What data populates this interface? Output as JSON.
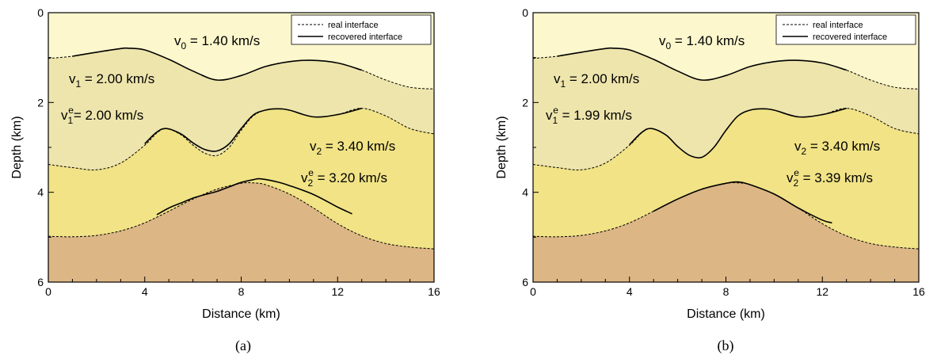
{
  "chart_data": [
    {
      "type": "line",
      "caption": "(a)",
      "xlabel": "Distance (km)",
      "ylabel": "Depth (km)",
      "xlim": [
        0,
        16
      ],
      "ylim": [
        6,
        0
      ],
      "x_ticks": [
        "0",
        "4",
        "8",
        "12",
        "16"
      ],
      "y_ticks": [
        "0",
        "2",
        "4",
        "6"
      ],
      "legend": {
        "placement": "top-right",
        "entries": [
          "real interface",
          "recovered interface"
        ]
      },
      "layer_colors": [
        "#fcf7cc",
        "#eee5ad",
        "#f1e386",
        "#ddb685"
      ],
      "layer_labels": [
        {
          "v": "v",
          "sub": "0",
          "sup": "",
          "text": " = 1.40 km/s"
        },
        {
          "v": "v",
          "sub": "1",
          "sup": "",
          "text": " = 2.00 km/s"
        },
        {
          "v": "v",
          "sub": "1",
          "sup": "e",
          "text": "= 2.00 km/s"
        },
        {
          "v": "v",
          "sub": "2",
          "sup": "",
          "text": " = 3.40 km/s"
        },
        {
          "v": "v",
          "sub": "2",
          "sup": "e",
          "text": " = 3.20 km/s"
        }
      ],
      "series": [
        {
          "name": "real interface",
          "role": "interface-1",
          "x": [
            0,
            1,
            2,
            3,
            3.3,
            4,
            5,
            6,
            7,
            8,
            9,
            10,
            10.9,
            12,
            13,
            14,
            15,
            16
          ],
          "y": [
            1.02,
            0.97,
            0.88,
            0.8,
            0.79,
            0.83,
            1.04,
            1.3,
            1.5,
            1.4,
            1.2,
            1.09,
            1.06,
            1.12,
            1.28,
            1.5,
            1.66,
            1.7
          ]
        },
        {
          "name": "recovered interface",
          "role": "interface-1",
          "x": [
            1,
            2,
            3,
            3.3,
            4,
            5,
            6,
            7,
            8,
            9,
            10,
            10.9,
            12,
            13
          ],
          "y": [
            0.97,
            0.88,
            0.8,
            0.79,
            0.83,
            1.04,
            1.3,
            1.5,
            1.4,
            1.2,
            1.09,
            1.06,
            1.12,
            1.28
          ]
        },
        {
          "name": "real interface",
          "role": "interface-2",
          "x": [
            0,
            1,
            2,
            3,
            4,
            4.5,
            4.9,
            5.5,
            6,
            6.5,
            7,
            7.5,
            8,
            8.5,
            9,
            9.5,
            10,
            11,
            12,
            13,
            14,
            15,
            16
          ],
          "y": [
            3.38,
            3.45,
            3.5,
            3.35,
            2.95,
            2.68,
            2.58,
            2.72,
            2.95,
            3.13,
            3.18,
            3.0,
            2.62,
            2.3,
            2.17,
            2.14,
            2.17,
            2.32,
            2.27,
            2.13,
            2.3,
            2.58,
            2.7
          ]
        },
        {
          "name": "recovered interface",
          "role": "interface-2",
          "x": [
            4,
            4.5,
            4.9,
            5.5,
            6,
            6.5,
            7,
            7.5,
            8,
            8.5,
            9,
            9.5,
            10,
            11,
            12,
            13
          ],
          "y": [
            2.92,
            2.66,
            2.58,
            2.7,
            2.9,
            3.05,
            3.08,
            2.92,
            2.58,
            2.28,
            2.17,
            2.14,
            2.17,
            2.32,
            2.27,
            2.13
          ]
        },
        {
          "name": "real interface",
          "role": "interface-3",
          "x": [
            0,
            1,
            2,
            3,
            4,
            5,
            6,
            7,
            8,
            8.5,
            9,
            10,
            11,
            12,
            13,
            14,
            15,
            16
          ],
          "y": [
            4.98,
            4.99,
            4.96,
            4.86,
            4.68,
            4.42,
            4.15,
            3.93,
            3.8,
            3.79,
            3.83,
            4.04,
            4.35,
            4.7,
            4.97,
            5.14,
            5.22,
            5.26
          ]
        },
        {
          "name": "recovered interface",
          "role": "interface-3",
          "x": [
            4.5,
            5,
            5.5,
            6,
            6.5,
            7,
            7.5,
            8,
            8.5,
            8.8,
            9.5,
            10,
            11,
            12,
            12.6
          ],
          "y": [
            4.5,
            4.35,
            4.24,
            4.13,
            4.05,
            3.98,
            3.88,
            3.78,
            3.72,
            3.7,
            3.77,
            3.85,
            4.05,
            4.33,
            4.48
          ]
        }
      ]
    },
    {
      "type": "line",
      "caption": "(b)",
      "xlabel": "Distance (km)",
      "ylabel": "Depth (km)",
      "xlim": [
        0,
        16
      ],
      "ylim": [
        6,
        0
      ],
      "x_ticks": [
        "0",
        "4",
        "8",
        "12",
        "16"
      ],
      "y_ticks": [
        "0",
        "2",
        "4",
        "6"
      ],
      "legend": {
        "placement": "top-right",
        "entries": [
          "real interface",
          "recovered interface"
        ]
      },
      "layer_colors": [
        "#fcf7cc",
        "#eee5ad",
        "#f1e386",
        "#ddb685"
      ],
      "layer_labels": [
        {
          "v": "v",
          "sub": "0",
          "sup": "",
          "text": " = 1.40 km/s"
        },
        {
          "v": "v",
          "sub": "1",
          "sup": "",
          "text": " = 2.00 km/s"
        },
        {
          "v": "v",
          "sub": "1",
          "sup": "e",
          "text": " = 1.99 km/s"
        },
        {
          "v": "v",
          "sub": "2",
          "sup": "",
          "text": " = 3.40 km/s"
        },
        {
          "v": "v",
          "sub": "2",
          "sup": "e",
          "text": " = 3.39 km/s"
        }
      ],
      "series": [
        {
          "name": "real interface",
          "role": "interface-1",
          "x": [
            0,
            1,
            2,
            3,
            3.3,
            4,
            5,
            6,
            7,
            8,
            9,
            10,
            10.9,
            12,
            13,
            14,
            15,
            16
          ],
          "y": [
            1.02,
            0.97,
            0.88,
            0.8,
            0.79,
            0.83,
            1.04,
            1.3,
            1.5,
            1.4,
            1.2,
            1.09,
            1.06,
            1.12,
            1.28,
            1.5,
            1.66,
            1.7
          ]
        },
        {
          "name": "recovered interface",
          "role": "interface-1",
          "x": [
            1,
            2,
            3,
            3.3,
            4,
            5,
            6,
            7,
            8,
            9,
            10,
            10.9,
            12,
            13
          ],
          "y": [
            0.97,
            0.88,
            0.8,
            0.79,
            0.83,
            1.04,
            1.3,
            1.5,
            1.4,
            1.2,
            1.09,
            1.06,
            1.12,
            1.28
          ]
        },
        {
          "name": "real interface",
          "role": "interface-2",
          "x": [
            0,
            1,
            2,
            3,
            4,
            4.5,
            4.9,
            5.5,
            6,
            6.5,
            7,
            7.5,
            8,
            8.5,
            9,
            9.5,
            10,
            11,
            12,
            13,
            14,
            15,
            16
          ],
          "y": [
            3.38,
            3.45,
            3.5,
            3.35,
            2.95,
            2.68,
            2.58,
            2.72,
            2.98,
            3.18,
            3.22,
            3.0,
            2.62,
            2.3,
            2.17,
            2.14,
            2.17,
            2.32,
            2.27,
            2.13,
            2.3,
            2.58,
            2.7
          ]
        },
        {
          "name": "recovered interface",
          "role": "interface-2",
          "x": [
            4,
            4.5,
            4.9,
            5.5,
            6,
            6.5,
            7,
            7.5,
            8,
            8.5,
            9,
            9.5,
            10,
            11,
            12,
            13
          ],
          "y": [
            2.94,
            2.67,
            2.58,
            2.72,
            2.98,
            3.18,
            3.22,
            3.0,
            2.62,
            2.3,
            2.17,
            2.14,
            2.17,
            2.32,
            2.27,
            2.13
          ]
        },
        {
          "name": "real interface",
          "role": "interface-3",
          "x": [
            0,
            1,
            2,
            3,
            4,
            5,
            6,
            7,
            8,
            8.5,
            9,
            10,
            11,
            12,
            13,
            14,
            15,
            16
          ],
          "y": [
            4.98,
            4.99,
            4.96,
            4.86,
            4.68,
            4.42,
            4.15,
            3.93,
            3.8,
            3.79,
            3.83,
            4.04,
            4.35,
            4.7,
            4.97,
            5.14,
            5.22,
            5.26
          ]
        },
        {
          "name": "recovered interface",
          "role": "interface-3",
          "x": [
            5,
            6,
            7,
            8,
            8.5,
            9,
            10,
            11,
            12,
            12.4
          ],
          "y": [
            4.42,
            4.15,
            3.93,
            3.8,
            3.77,
            3.83,
            4.04,
            4.35,
            4.62,
            4.68
          ]
        }
      ]
    }
  ]
}
